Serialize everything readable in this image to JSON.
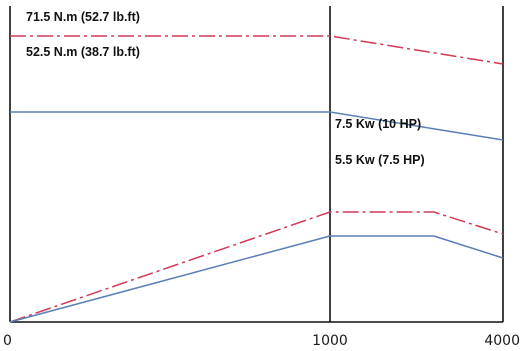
{
  "chart_data": {
    "type": "line",
    "xlabel": "",
    "ylabel": "",
    "x_ticks": [
      {
        "value": 0,
        "label": "0"
      },
      {
        "value": 1000,
        "label": "1000"
      },
      {
        "value": 4000,
        "label": "4000"
      }
    ],
    "x_segments": [
      [
        0,
        1000
      ],
      [
        1000,
        4000
      ]
    ],
    "grid": false,
    "series": [
      {
        "key": "torque_max",
        "color": "#d23a55",
        "style": "dash-dot",
        "points": [
          [
            0,
            71.5
          ],
          [
            1000,
            71.5
          ],
          [
            4000,
            64.5
          ]
        ]
      },
      {
        "key": "torque_nominal",
        "color": "#5b7fb5",
        "style": "solid",
        "points": [
          [
            0,
            52.5
          ],
          [
            1000,
            52.5
          ],
          [
            4000,
            45.5
          ]
        ]
      },
      {
        "key": "power_max",
        "color": "#d23a55",
        "style": "dash-dot",
        "points": [
          [
            0,
            0
          ],
          [
            1000,
            27.5
          ],
          [
            2800,
            27.5
          ],
          [
            4000,
            22
          ]
        ]
      },
      {
        "key": "power_nominal",
        "color": "#5b7fb5",
        "style": "solid",
        "points": [
          [
            0,
            0
          ],
          [
            1000,
            21.5
          ],
          [
            2800,
            21.5
          ],
          [
            4000,
            16
          ]
        ]
      }
    ],
    "annotations": [
      {
        "key": "a_torque_max",
        "text": "71.5 N.m (52.7 lb.ft)"
      },
      {
        "key": "a_torque_nominal",
        "text": "52.5 N.m  (38.7 lb.ft)"
      },
      {
        "key": "a_power_max",
        "text": "7.5 Kw (10 HP)"
      },
      {
        "key": "a_power_nominal",
        "text": "5.5 Kw (7.5 HP)"
      }
    ]
  }
}
